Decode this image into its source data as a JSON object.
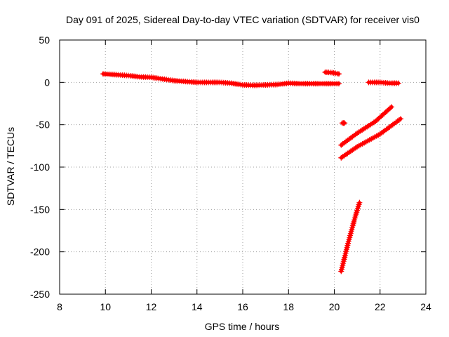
{
  "chart_data": {
    "type": "scatter",
    "title": "Day 091 of 2025, Sidereal Day-to-day VTEC variation (SDTVAR) for receiver vis0",
    "xlabel": "GPS time / hours",
    "ylabel": "SDTVAR / TECUs",
    "xlim": [
      8,
      24
    ],
    "ylim": [
      -250,
      50
    ],
    "xticks": [
      8,
      10,
      12,
      14,
      16,
      18,
      20,
      22,
      24
    ],
    "yticks": [
      -250,
      -200,
      -150,
      -100,
      -50,
      0,
      50
    ],
    "grid": true,
    "marker_color": "#ff0000",
    "segments": [
      {
        "points": [
          [
            9.9,
            10
          ],
          [
            10.5,
            9
          ],
          [
            11,
            8
          ],
          [
            11.5,
            6.5
          ],
          [
            12,
            6
          ],
          [
            12.5,
            4
          ],
          [
            13,
            2
          ],
          [
            13.5,
            1
          ],
          [
            14,
            0
          ],
          [
            14.5,
            0
          ],
          [
            15,
            0
          ],
          [
            15.5,
            -1
          ],
          [
            16,
            -3
          ],
          [
            16.5,
            -3.5
          ],
          [
            17,
            -3
          ],
          [
            17.5,
            -2.5
          ],
          [
            18,
            -1
          ],
          [
            18.5,
            -1.5
          ],
          [
            19,
            -1.5
          ],
          [
            19.5,
            -1.5
          ],
          [
            20.2,
            -1.5
          ]
        ]
      },
      {
        "points": [
          [
            19.6,
            12
          ],
          [
            19.9,
            11.5
          ],
          [
            20.2,
            10
          ]
        ]
      },
      {
        "points": [
          [
            20.35,
            -48
          ],
          [
            20.45,
            -48
          ]
        ]
      },
      {
        "points": [
          [
            20.3,
            -74
          ],
          [
            21,
            -60
          ],
          [
            21.8,
            -46
          ],
          [
            22.5,
            -29
          ]
        ]
      },
      {
        "points": [
          [
            20.3,
            -89
          ],
          [
            21,
            -76
          ],
          [
            22,
            -61
          ],
          [
            22.9,
            -43
          ]
        ]
      },
      {
        "points": [
          [
            20.3,
            -223
          ],
          [
            20.6,
            -190
          ],
          [
            20.9,
            -160
          ],
          [
            21.1,
            -142
          ]
        ]
      },
      {
        "points": [
          [
            21.5,
            0
          ],
          [
            22,
            0
          ],
          [
            22.4,
            -1
          ],
          [
            22.8,
            -1
          ]
        ]
      }
    ]
  }
}
